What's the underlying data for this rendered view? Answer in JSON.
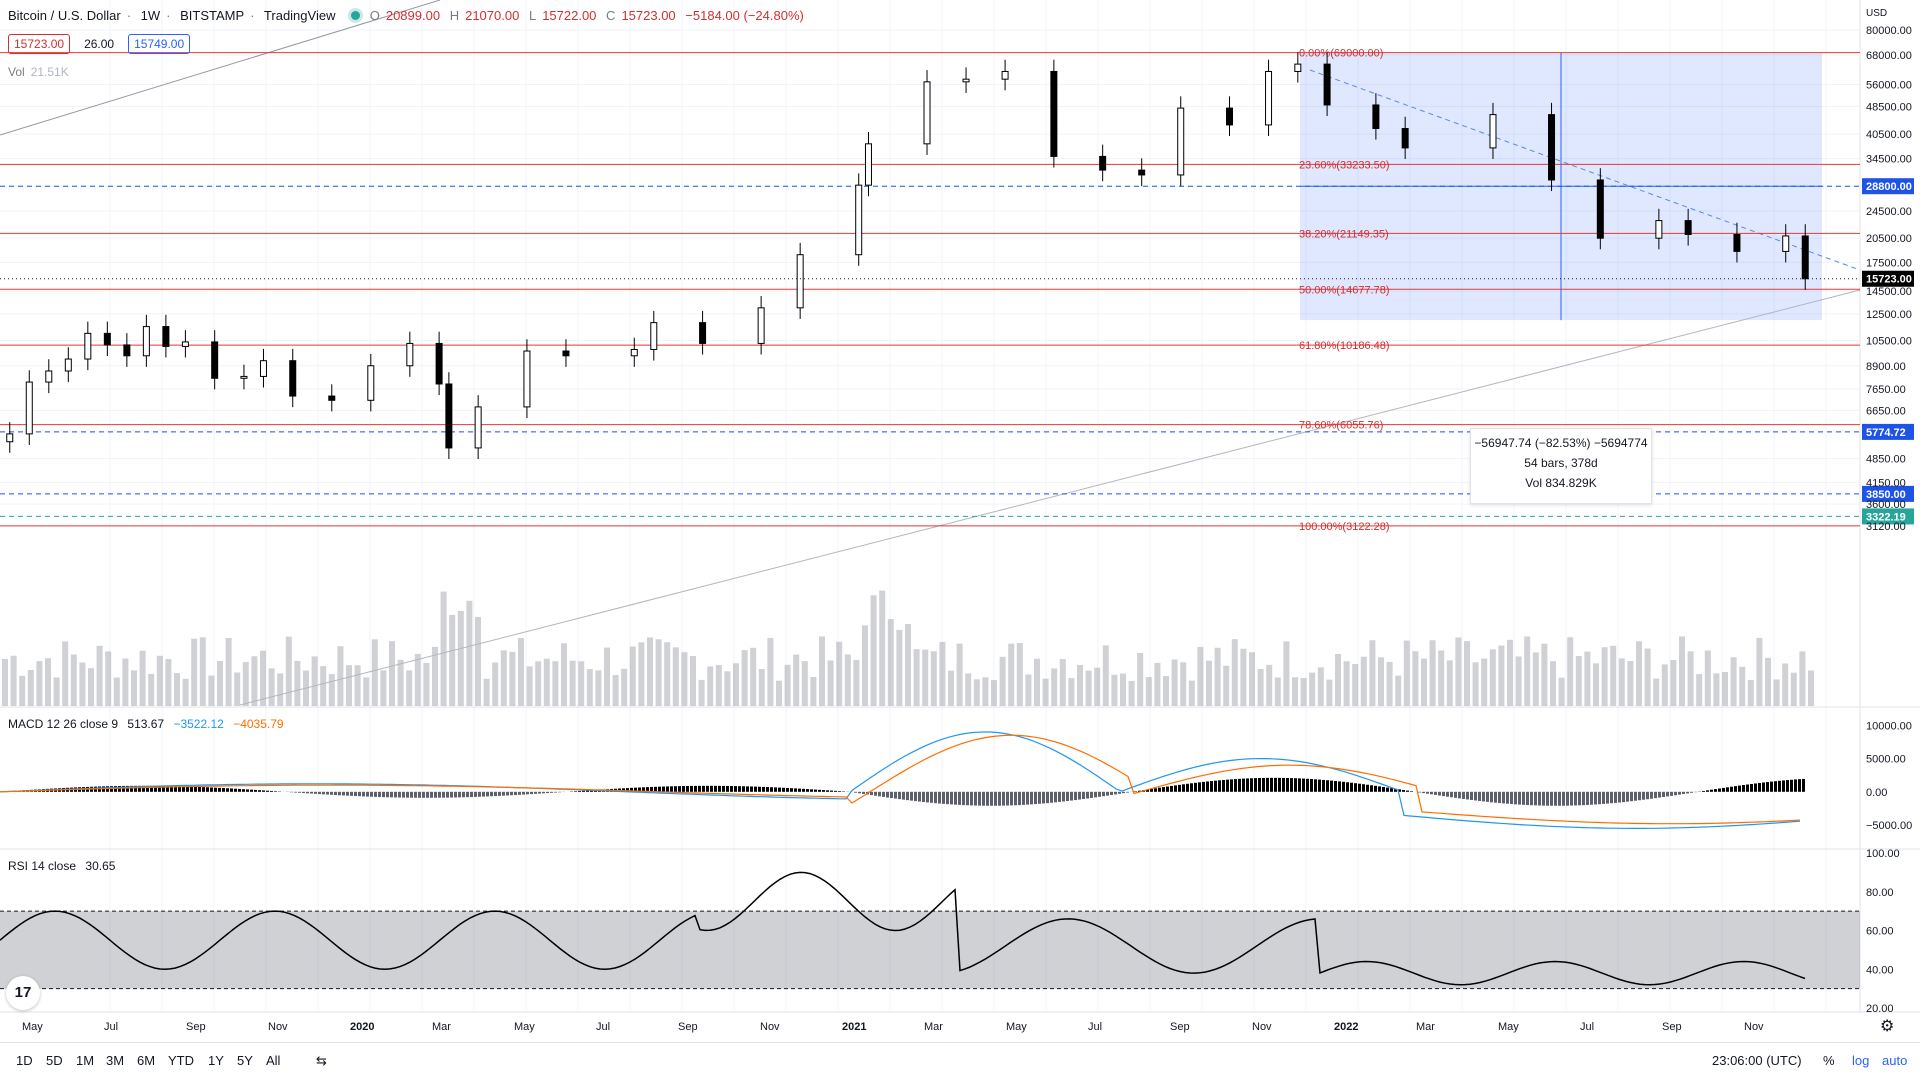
{
  "legend": {
    "symbol": "Bitcoin / U.S. Dollar",
    "interval": "1W",
    "exchange": "BITSTAMP",
    "source": "TradingView",
    "open": "20899.00",
    "high": "21070.00",
    "low": "15722.00",
    "close": "15723.00",
    "change": "−5184.00 (−24.80%)",
    "bid": "15723.00",
    "spread": "26.00",
    "ask": "15749.00",
    "vol_label": "Vol",
    "vol_value": "21.51K"
  },
  "indicators": {
    "macd": {
      "label": "MACD 12 26 close 9",
      "hist": "513.67",
      "macd": "−3522.12",
      "signal": "−4035.79"
    },
    "rsi": {
      "label": "RSI 14 close",
      "value": "30.65"
    }
  },
  "measure": {
    "line1": "−56947.74 (−82.53%) −5694774",
    "line2": "54 bars, 378d",
    "line3": "Vol 834.829K"
  },
  "bottom_bar": {
    "timeframes": [
      "1D",
      "5D",
      "1M",
      "3M",
      "6M",
      "YTD",
      "1Y",
      "5Y",
      "All"
    ],
    "time": "23:06:00 (UTC)",
    "percent": "%",
    "log": "log",
    "auto": "auto"
  },
  "chart_data": [
    {
      "type": "candlestick",
      "title": "Bitcoin / U.S. Dollar · 1W · BITSTAMP",
      "currency": "USD",
      "scale": "log",
      "ylim": [
        3000,
        85000
      ],
      "xlim": [
        "2019-04-22",
        "2022-11-14"
      ],
      "x_tick_labels": [
        "May",
        "Jul",
        "Sep",
        "Nov",
        "2020",
        "Mar",
        "May",
        "Jul",
        "Sep",
        "Nov",
        "2021",
        "Mar",
        "May",
        "Jul",
        "Sep",
        "Nov",
        "2022",
        "Mar",
        "May",
        "Jul",
        "Sep",
        "Nov"
      ],
      "y_tick_labels": [
        "80000.00",
        "68000.00",
        "56000.00",
        "48500.00",
        "40500.00",
        "34500.00",
        "28800.00",
        "24500.00",
        "20500.00",
        "17500.00",
        "14500.00",
        "12500.00",
        "10500.00",
        "8900.00",
        "7650.00",
        "6650.00",
        "5774.72",
        "4850.00",
        "4150.00",
        "3600.00",
        "3120.00"
      ],
      "last_price": 15723.0,
      "ohlc_weekly_close": [
        [
          "2019-04-29",
          5700
        ],
        [
          "2019-05-13",
          8000
        ],
        [
          "2019-05-27",
          8600
        ],
        [
          "2019-06-10",
          9300
        ],
        [
          "2019-06-24",
          11000
        ],
        [
          "2019-07-08",
          10200
        ],
        [
          "2019-07-22",
          9500
        ],
        [
          "2019-08-05",
          11500
        ],
        [
          "2019-08-19",
          10100
        ],
        [
          "2019-09-02",
          10400
        ],
        [
          "2019-09-23",
          8200
        ],
        [
          "2019-10-14",
          8300
        ],
        [
          "2019-10-28",
          9200
        ],
        [
          "2019-11-18",
          7300
        ],
        [
          "2019-12-16",
          7100
        ],
        [
          "2020-01-13",
          8900
        ],
        [
          "2020-02-10",
          10300
        ],
        [
          "2020-03-02",
          7900
        ],
        [
          "2020-03-09",
          5200
        ],
        [
          "2020-03-30",
          6800
        ],
        [
          "2020-05-04",
          9800
        ],
        [
          "2020-06-01",
          9500
        ],
        [
          "2020-07-20",
          9900
        ],
        [
          "2020-08-03",
          11800
        ],
        [
          "2020-09-07",
          10300
        ],
        [
          "2020-10-19",
          13000
        ],
        [
          "2020-11-16",
          18400
        ],
        [
          "2020-12-28",
          29000
        ],
        [
          "2021-01-04",
          38000
        ],
        [
          "2021-02-15",
          57000
        ],
        [
          "2021-03-15",
          58000
        ],
        [
          "2021-04-12",
          61000
        ],
        [
          "2021-05-17",
          35000
        ],
        [
          "2021-06-21",
          32000
        ],
        [
          "2021-07-19",
          31000
        ],
        [
          "2021-08-16",
          48000
        ],
        [
          "2021-09-20",
          43000
        ],
        [
          "2021-10-18",
          61000
        ],
        [
          "2021-11-08",
          64000
        ],
        [
          "2021-11-29",
          49000
        ],
        [
          "2022-01-03",
          42000
        ],
        [
          "2022-01-24",
          37000
        ],
        [
          "2022-03-28",
          46000
        ],
        [
          "2022-05-09",
          30000
        ],
        [
          "2022-06-13",
          20500
        ],
        [
          "2022-07-25",
          23000
        ],
        [
          "2022-08-15",
          21000
        ],
        [
          "2022-09-19",
          18800
        ],
        [
          "2022-10-24",
          20800
        ],
        [
          "2022-11-07",
          15723
        ]
      ]
    },
    {
      "type": "annotations",
      "fibonacci_levels": [
        {
          "label": "0.00%(69000.00)",
          "value": 69000.0
        },
        {
          "label": "23.60%(33233.50)",
          "value": 33233.5
        },
        {
          "label": "38.20%(21149.35)",
          "value": 21149.35
        },
        {
          "label": "50.00%(14677.78)",
          "value": 14677.78
        },
        {
          "label": "61.80%(10186.48)",
          "value": 10186.48
        },
        {
          "label": "78.60%(6055.76)",
          "value": 6055.76
        },
        {
          "label": "100.00%(3122.28)",
          "value": 3122.28
        }
      ],
      "horizontal_lines": [
        {
          "label": "28800.00",
          "value": 28800.0,
          "color": "#1e53e5"
        },
        {
          "label": "5774.72",
          "value": 5774.72,
          "color": "#1e53e5"
        },
        {
          "label": "3850.00",
          "value": 3850.0,
          "color": "#1e53e5"
        },
        {
          "label": "3322.19",
          "value": 3322.19,
          "color": "#26a69a"
        }
      ],
      "price_label": {
        "label": "15723.00",
        "value": 15723.0
      }
    },
    {
      "type": "line",
      "indicator": "MACD",
      "ylim": [
        -8000,
        12000
      ],
      "y_tick_labels": [
        "10000.00",
        "5000.00",
        "0.00",
        "−5000.00"
      ],
      "series": [
        {
          "name": "MACD",
          "color": "#2196f3"
        },
        {
          "name": "Signal",
          "color": "#ff6d00"
        }
      ]
    },
    {
      "type": "line",
      "indicator": "RSI",
      "ylim": [
        20,
        100
      ],
      "bands": [
        30,
        70
      ],
      "y_tick_labels": [
        "100.00",
        "80.00",
        "60.00",
        "40.00",
        "20.00"
      ]
    }
  ]
}
